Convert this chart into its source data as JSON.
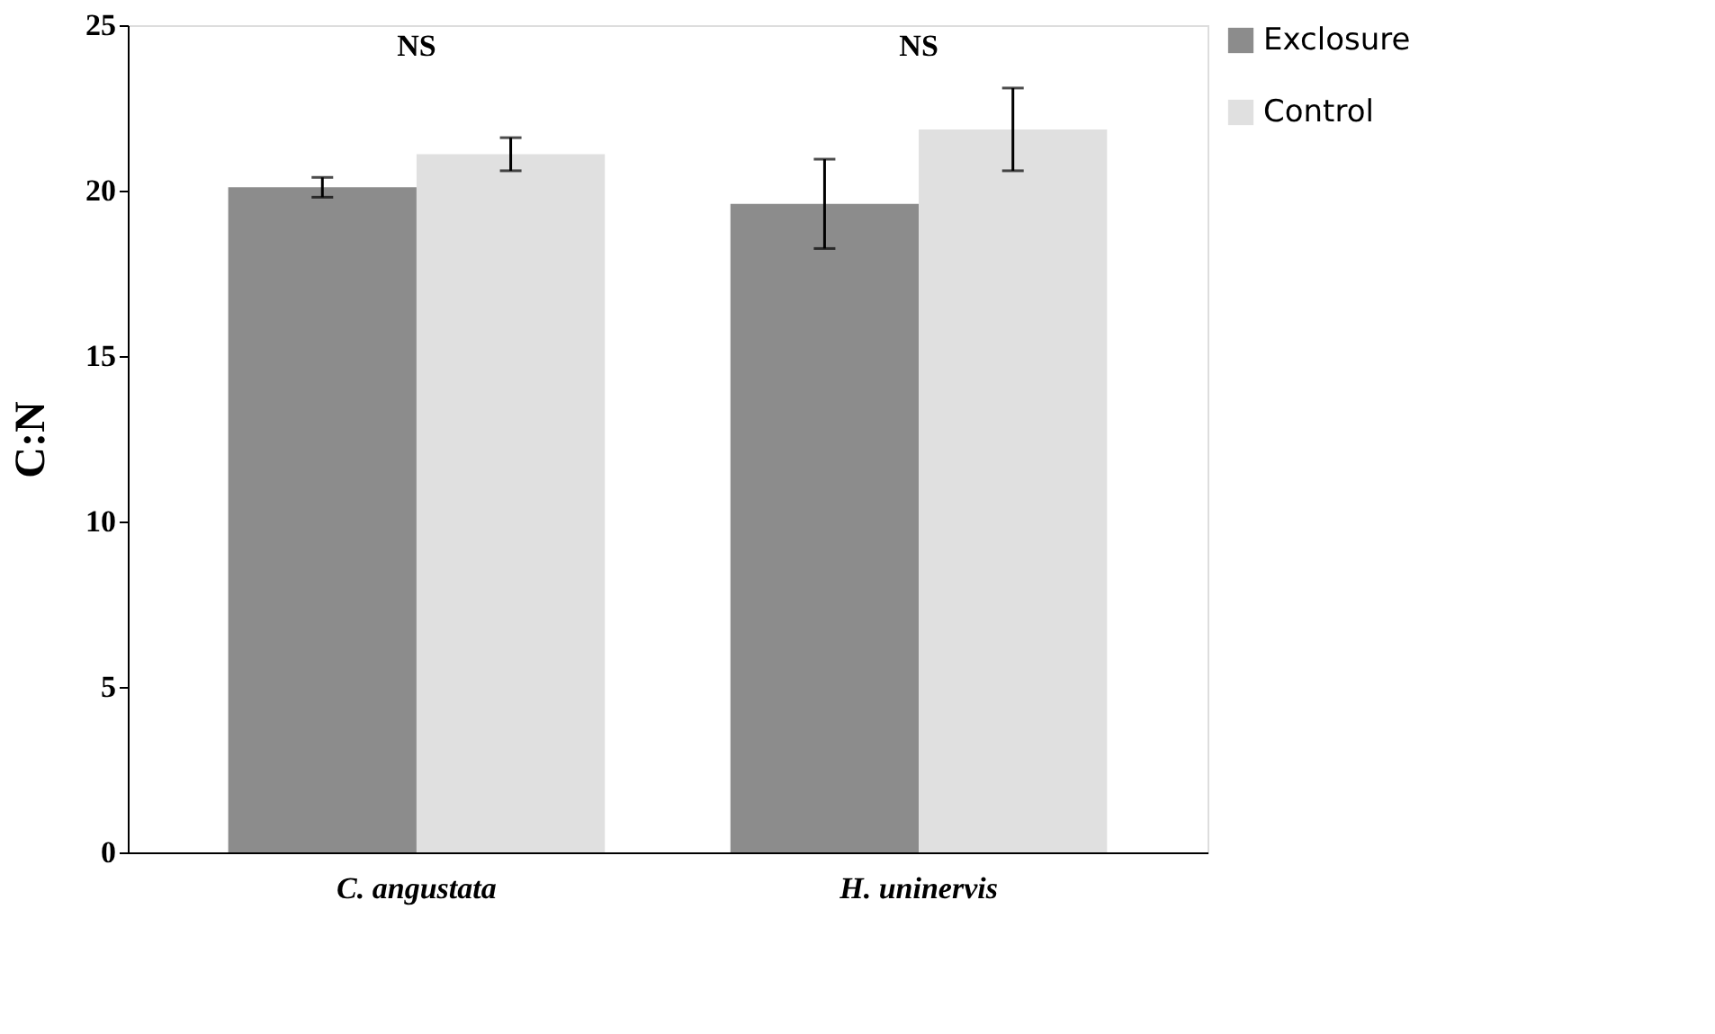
{
  "chart_data": {
    "type": "bar",
    "ylabel": "C:N",
    "categories": [
      "C. angustata",
      "H. uninervis"
    ],
    "series": [
      {
        "name": "Exclosure",
        "color": "#8c8c8c",
        "values": [
          20.1,
          19.6
        ],
        "errors": [
          0.3,
          1.35
        ]
      },
      {
        "name": "Control",
        "color": "#e0e0e0",
        "values": [
          21.1,
          21.85
        ],
        "errors": [
          0.5,
          1.25
        ]
      }
    ],
    "ylim": [
      0,
      25
    ],
    "yticks": [
      0,
      5,
      10,
      15,
      20,
      25
    ],
    "grid": false,
    "legend": "top right",
    "annotations": [
      "NS",
      "NS"
    ]
  }
}
